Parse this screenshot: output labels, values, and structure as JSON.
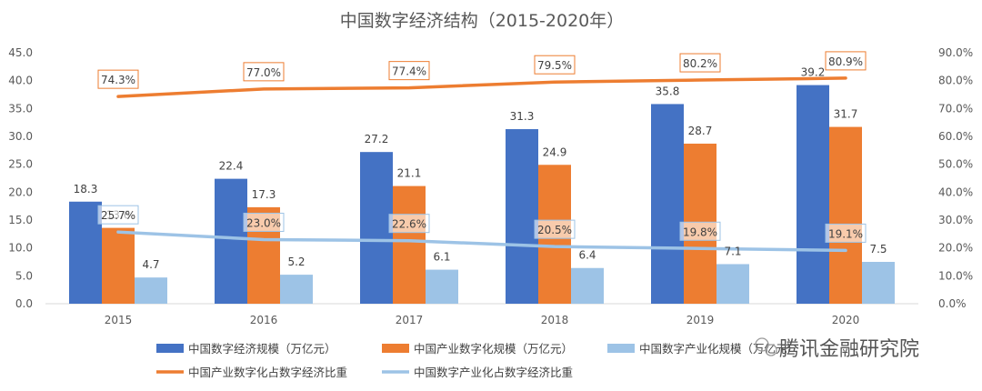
{
  "chart_data": {
    "type": "bar",
    "title": "中国数字经济结构（2015-2020年）",
    "categories": [
      "2015",
      "2016",
      "2017",
      "2018",
      "2019",
      "2020"
    ],
    "ylim_left": [
      0,
      45
    ],
    "yticks_left": [
      "0.0",
      "5.0",
      "10.0",
      "15.0",
      "20.0",
      "25.0",
      "30.0",
      "35.0",
      "40.0",
      "45.0"
    ],
    "ylim_right": [
      0,
      90
    ],
    "yticks_right": [
      "0.0%",
      "10.0%",
      "20.0%",
      "30.0%",
      "40.0%",
      "50.0%",
      "60.0%",
      "70.0%",
      "80.0%",
      "90.0%"
    ],
    "grid": false,
    "legend_position": "bottom",
    "bar_series": [
      {
        "name": "中国数字经济规模（万亿元）",
        "values": [
          18.3,
          22.4,
          27.2,
          31.3,
          35.8,
          39.2
        ],
        "labels": [
          "18.3",
          "22.4",
          "27.2",
          "31.3",
          "35.8",
          "39.2"
        ],
        "color": "#4472C4"
      },
      {
        "name": "中国产业数字化规模（万亿元）",
        "values": [
          13.6,
          17.3,
          21.1,
          24.9,
          28.7,
          31.7
        ],
        "labels": [
          "13.6",
          "17.3",
          "21.1",
          "24.9",
          "28.7",
          "31.7"
        ],
        "color": "#ED7D31"
      },
      {
        "name": "中国数字产业化规模（万亿元）",
        "values": [
          4.7,
          5.2,
          6.1,
          6.4,
          7.1,
          7.5
        ],
        "labels": [
          "4.7",
          "5.2",
          "6.1",
          "6.4",
          "7.1",
          "7.5"
        ],
        "color": "#9DC3E6"
      }
    ],
    "line_series": [
      {
        "name": "中国产业数字化占数字经济比重",
        "values": [
          74.3,
          77.0,
          77.4,
          79.5,
          80.2,
          80.9
        ],
        "labels": [
          "74.3%",
          "77.0%",
          "77.4%",
          "79.5%",
          "80.2%",
          "80.9%"
        ],
        "color": "#ED7D31"
      },
      {
        "name": "中国数字产业化占数字经济比重",
        "values": [
          25.7,
          23.0,
          22.6,
          20.5,
          19.8,
          19.1
        ],
        "labels": [
          "25.7%",
          "23.0%",
          "22.6%",
          "20.5%",
          "19.8%",
          "19.1%"
        ],
        "color": "#9DC3E6"
      }
    ]
  },
  "watermark": "腾讯金融研究院"
}
